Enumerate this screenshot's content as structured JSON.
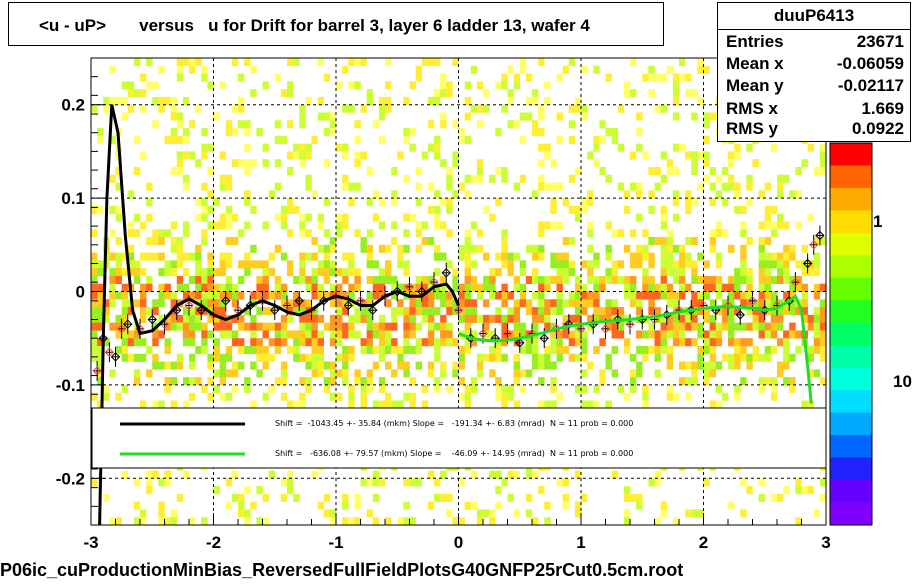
{
  "title": "<u - uP>       versus   u for Drift for barrel 3, layer 6 ladder 13, wafer 4",
  "footer": "P06ic_cuProductionMinBias_ReversedFullFieldPlotsG40GNFP25rCut0.5cm.root",
  "stats": {
    "name": "duuP6413",
    "rows": [
      {
        "label": "Entries",
        "value": "23671"
      },
      {
        "label": "Mean x",
        "value": "-0.06059"
      },
      {
        "label": "Mean y",
        "value": "-0.02117"
      },
      {
        "label": "RMS x",
        "value": "1.669"
      },
      {
        "label": "RMS y",
        "value": "0.0922"
      }
    ]
  },
  "fits": [
    {
      "color": "#000000",
      "text": "Shift =  -1043.45 +- 35.84 (mkm) Slope =   -191.34 +- 6.83 (mrad)  N = 11 prob = 0.000"
    },
    {
      "color": "#22dd22",
      "text": "Shift =   -636.08 +- 79.57 (mkm) Slope =    -46.09 +- 14.95 (mrad)  N = 11 prob = 0.000"
    }
  ],
  "colors": {
    "palette_low": "#8000ff",
    "palette_high": "#ff0000",
    "fit1": "#000000",
    "fit2": "#22dd22"
  },
  "z_axis": {
    "labels": [
      "1",
      "10"
    ]
  },
  "chart_data": {
    "type": "heatmap",
    "title": "<u - uP>       versus   u for Drift for barrel 3, layer 6 ladder 13, wafer 4",
    "xlim": [
      -3,
      3
    ],
    "ylim": [
      -0.25,
      0.25
    ],
    "x_ticks": [
      -3,
      -2,
      -1,
      0,
      1,
      2,
      3
    ],
    "y_ticks": [
      -0.2,
      -0.1,
      0,
      0.1,
      0.2
    ],
    "grid": true,
    "profile_points": [
      {
        "x": -2.95,
        "y": -0.085
      },
      {
        "x": -2.9,
        "y": -0.05
      },
      {
        "x": -2.85,
        "y": -0.065
      },
      {
        "x": -2.8,
        "y": -0.07
      },
      {
        "x": -2.75,
        "y": -0.04
      },
      {
        "x": -2.7,
        "y": -0.035
      },
      {
        "x": -2.6,
        "y": -0.04
      },
      {
        "x": -2.5,
        "y": -0.03
      },
      {
        "x": -2.4,
        "y": -0.035
      },
      {
        "x": -2.3,
        "y": -0.02
      },
      {
        "x": -2.2,
        "y": -0.015
      },
      {
        "x": -2.1,
        "y": -0.02
      },
      {
        "x": -2.0,
        "y": -0.025
      },
      {
        "x": -1.9,
        "y": -0.01
      },
      {
        "x": -1.8,
        "y": -0.02
      },
      {
        "x": -1.7,
        "y": -0.015
      },
      {
        "x": -1.6,
        "y": -0.01
      },
      {
        "x": -1.5,
        "y": -0.02
      },
      {
        "x": -1.4,
        "y": -0.015
      },
      {
        "x": -1.3,
        "y": -0.01
      },
      {
        "x": -1.2,
        "y": -0.02
      },
      {
        "x": -1.1,
        "y": -0.01
      },
      {
        "x": -1.0,
        "y": -0.005
      },
      {
        "x": -0.9,
        "y": -0.015
      },
      {
        "x": -0.8,
        "y": -0.01
      },
      {
        "x": -0.7,
        "y": -0.02
      },
      {
        "x": -0.6,
        "y": -0.005
      },
      {
        "x": -0.5,
        "y": 0.0
      },
      {
        "x": -0.4,
        "y": 0.005
      },
      {
        "x": -0.3,
        "y": 0.0
      },
      {
        "x": -0.2,
        "y": 0.01
      },
      {
        "x": -0.1,
        "y": 0.02
      },
      {
        "x": 0.0,
        "y": -0.02
      },
      {
        "x": 0.1,
        "y": -0.05
      },
      {
        "x": 0.2,
        "y": -0.045
      },
      {
        "x": 0.3,
        "y": -0.05
      },
      {
        "x": 0.4,
        "y": -0.045
      },
      {
        "x": 0.5,
        "y": -0.055
      },
      {
        "x": 0.6,
        "y": -0.045
      },
      {
        "x": 0.7,
        "y": -0.05
      },
      {
        "x": 0.8,
        "y": -0.04
      },
      {
        "x": 0.9,
        "y": -0.035
      },
      {
        "x": 1.0,
        "y": -0.04
      },
      {
        "x": 1.1,
        "y": -0.035
      },
      {
        "x": 1.2,
        "y": -0.04
      },
      {
        "x": 1.3,
        "y": -0.03
      },
      {
        "x": 1.4,
        "y": -0.035
      },
      {
        "x": 1.5,
        "y": -0.03
      },
      {
        "x": 1.6,
        "y": -0.03
      },
      {
        "x": 1.7,
        "y": -0.025
      },
      {
        "x": 1.8,
        "y": -0.02
      },
      {
        "x": 1.9,
        "y": -0.02
      },
      {
        "x": 2.0,
        "y": -0.015
      },
      {
        "x": 2.1,
        "y": -0.02
      },
      {
        "x": 2.2,
        "y": -0.015
      },
      {
        "x": 2.3,
        "y": -0.025
      },
      {
        "x": 2.4,
        "y": -0.01
      },
      {
        "x": 2.5,
        "y": -0.02
      },
      {
        "x": 2.6,
        "y": -0.015
      },
      {
        "x": 2.7,
        "y": -0.01
      },
      {
        "x": 2.75,
        "y": 0.01
      },
      {
        "x": 2.85,
        "y": 0.03
      },
      {
        "x": 2.9,
        "y": 0.05
      },
      {
        "x": 2.95,
        "y": 0.06
      }
    ],
    "fit_black": [
      {
        "x": -2.93,
        "y": -0.25
      },
      {
        "x": -2.9,
        "y": -0.05
      },
      {
        "x": -2.87,
        "y": 0.1
      },
      {
        "x": -2.83,
        "y": 0.2
      },
      {
        "x": -2.78,
        "y": 0.17
      },
      {
        "x": -2.72,
        "y": 0.06
      },
      {
        "x": -2.66,
        "y": -0.02
      },
      {
        "x": -2.6,
        "y": -0.045
      },
      {
        "x": -2.5,
        "y": -0.042
      },
      {
        "x": -2.4,
        "y": -0.03
      },
      {
        "x": -2.3,
        "y": -0.015
      },
      {
        "x": -2.2,
        "y": -0.008
      },
      {
        "x": -2.1,
        "y": -0.015
      },
      {
        "x": -2.0,
        "y": -0.025
      },
      {
        "x": -1.9,
        "y": -0.03
      },
      {
        "x": -1.8,
        "y": -0.025
      },
      {
        "x": -1.7,
        "y": -0.015
      },
      {
        "x": -1.6,
        "y": -0.01
      },
      {
        "x": -1.5,
        "y": -0.015
      },
      {
        "x": -1.4,
        "y": -0.022
      },
      {
        "x": -1.3,
        "y": -0.025
      },
      {
        "x": -1.2,
        "y": -0.02
      },
      {
        "x": -1.1,
        "y": -0.01
      },
      {
        "x": -1.0,
        "y": -0.005
      },
      {
        "x": -0.9,
        "y": -0.008
      },
      {
        "x": -0.8,
        "y": -0.015
      },
      {
        "x": -0.7,
        "y": -0.015
      },
      {
        "x": -0.6,
        "y": -0.005
      },
      {
        "x": -0.5,
        "y": 0.0
      },
      {
        "x": -0.4,
        "y": -0.005
      },
      {
        "x": -0.3,
        "y": -0.005
      },
      {
        "x": -0.2,
        "y": 0.005
      },
      {
        "x": -0.1,
        "y": 0.008
      },
      {
        "x": -0.05,
        "y": 0.0
      },
      {
        "x": 0.0,
        "y": -0.015
      }
    ],
    "fit_green": [
      {
        "x": 0.0,
        "y": -0.045
      },
      {
        "x": 0.1,
        "y": -0.05
      },
      {
        "x": 0.2,
        "y": -0.052
      },
      {
        "x": 0.3,
        "y": -0.053
      },
      {
        "x": 0.4,
        "y": -0.052
      },
      {
        "x": 0.5,
        "y": -0.05
      },
      {
        "x": 0.6,
        "y": -0.047
      },
      {
        "x": 0.7,
        "y": -0.044
      },
      {
        "x": 0.8,
        "y": -0.04
      },
      {
        "x": 0.9,
        "y": -0.037
      },
      {
        "x": 1.0,
        "y": -0.035
      },
      {
        "x": 1.2,
        "y": -0.032
      },
      {
        "x": 1.4,
        "y": -0.03
      },
      {
        "x": 1.6,
        "y": -0.027
      },
      {
        "x": 1.8,
        "y": -0.022
      },
      {
        "x": 2.0,
        "y": -0.018
      },
      {
        "x": 2.2,
        "y": -0.016
      },
      {
        "x": 2.4,
        "y": -0.018
      },
      {
        "x": 2.5,
        "y": -0.02
      },
      {
        "x": 2.6,
        "y": -0.018
      },
      {
        "x": 2.7,
        "y": -0.01
      },
      {
        "x": 2.75,
        "y": -0.005
      },
      {
        "x": 2.8,
        "y": -0.02
      },
      {
        "x": 2.85,
        "y": -0.08
      },
      {
        "x": 2.88,
        "y": -0.12
      }
    ]
  }
}
